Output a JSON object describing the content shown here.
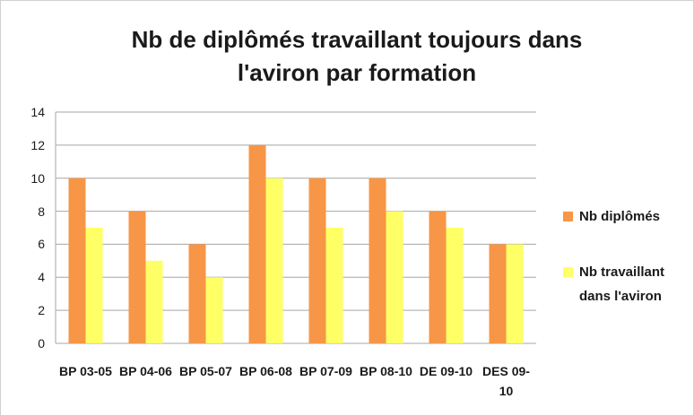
{
  "chart_data": {
    "type": "bar",
    "title": "Nb de diplômés travaillant toujours dans l'aviron par formation",
    "categories": [
      "BP 03-05",
      "BP 04-06",
      "BP 05-07",
      "BP 06-08",
      "BP 07-09",
      "BP 08-10",
      "DE 09-10",
      "DES 09-10"
    ],
    "series": [
      {
        "name": "Nb diplômés",
        "color": "#f79646",
        "values": [
          10,
          8,
          6,
          12,
          10,
          10,
          8,
          6
        ]
      },
      {
        "name": "Nb travaillant dans l'aviron",
        "color": "#ffff66",
        "values": [
          7,
          5,
          4,
          10,
          7,
          8,
          7,
          6
        ]
      }
    ],
    "ylim": [
      0,
      14
    ],
    "yticks": [
      0,
      2,
      4,
      6,
      8,
      10,
      12,
      14
    ],
    "grid": true,
    "legend": "right"
  }
}
